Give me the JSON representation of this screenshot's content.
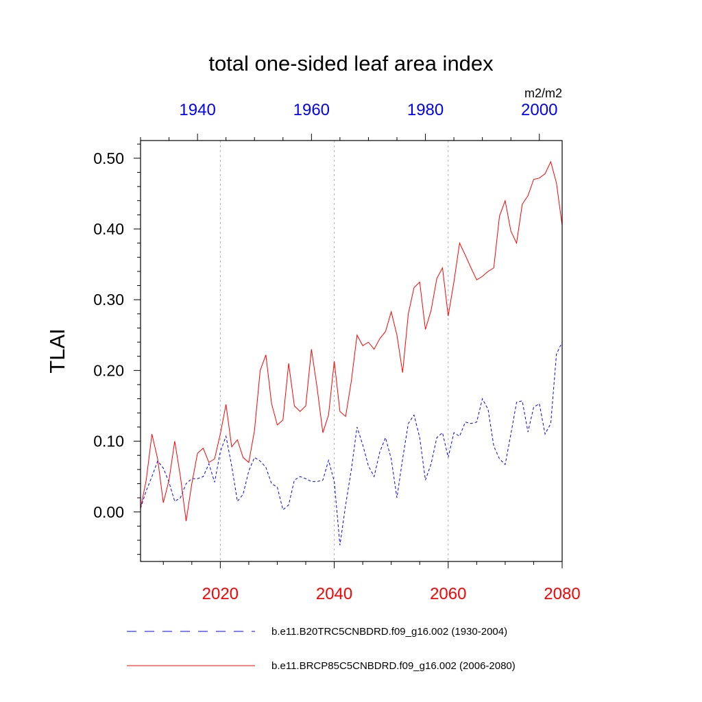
{
  "chart_data": {
    "type": "line",
    "title": "total one-sided leaf area index",
    "units": "m2/m2",
    "ylabel": "TLAI",
    "ylim": [
      -0.07,
      0.525
    ],
    "yticks": [
      "0.00",
      "0.10",
      "0.20",
      "0.30",
      "0.40",
      "0.50"
    ],
    "ytick_values": [
      0.0,
      0.1,
      0.2,
      0.3,
      0.4,
      0.5
    ],
    "grid_vertical_dashed": true,
    "top_axis": {
      "color": "#0000ff",
      "range": [
        1930,
        2004
      ],
      "ticks": [
        "1940",
        "1960",
        "1980",
        "2000"
      ],
      "tick_values": [
        1940,
        1960,
        1980,
        2000
      ]
    },
    "bottom_axis": {
      "color": "#ff0000",
      "range": [
        2006,
        2080
      ],
      "ticks": [
        "2020",
        "2040",
        "2060",
        "2080"
      ],
      "tick_values": [
        2020,
        2040,
        2060,
        2080
      ]
    },
    "series": [
      {
        "name": "b.e11.B20TRC5CNBDRD.f09_g16.002 (1930-2004)",
        "color": "#0000ff",
        "dash": "dashed",
        "axis": "top",
        "x_start": 1930,
        "values": [
          0.005,
          0.03,
          0.05,
          0.072,
          0.062,
          0.042,
          0.015,
          0.02,
          0.04,
          0.047,
          0.047,
          0.05,
          0.068,
          0.042,
          0.085,
          0.107,
          0.065,
          0.015,
          0.025,
          0.058,
          0.077,
          0.072,
          0.063,
          0.04,
          0.035,
          0.003,
          0.01,
          0.045,
          0.05,
          0.047,
          0.043,
          0.043,
          0.045,
          0.073,
          0.043,
          -0.047,
          0.01,
          0.06,
          0.12,
          0.095,
          0.065,
          0.05,
          0.085,
          0.105,
          0.075,
          0.02,
          0.075,
          0.125,
          0.137,
          0.105,
          0.045,
          0.068,
          0.105,
          0.112,
          0.077,
          0.112,
          0.107,
          0.127,
          0.125,
          0.127,
          0.16,
          0.145,
          0.093,
          0.075,
          0.067,
          0.11,
          0.155,
          0.157,
          0.113,
          0.148,
          0.153,
          0.11,
          0.125,
          0.223,
          0.24
        ]
      },
      {
        "name": "b.e11.BRCP85C5CNBDRD.f09_g16.002 (2006-2080)",
        "color": "#ff0000",
        "dash": "solid",
        "axis": "bottom",
        "x_start": 2006,
        "values": [
          0.005,
          0.045,
          0.11,
          0.075,
          0.013,
          0.045,
          0.1,
          0.05,
          -0.013,
          0.04,
          0.083,
          0.09,
          0.07,
          0.075,
          0.11,
          0.152,
          0.092,
          0.102,
          0.077,
          0.07,
          0.115,
          0.2,
          0.222,
          0.153,
          0.123,
          0.13,
          0.21,
          0.15,
          0.142,
          0.15,
          0.23,
          0.175,
          0.112,
          0.137,
          0.213,
          0.142,
          0.135,
          0.185,
          0.25,
          0.235,
          0.24,
          0.23,
          0.245,
          0.255,
          0.283,
          0.25,
          0.197,
          0.28,
          0.317,
          0.325,
          0.258,
          0.285,
          0.33,
          0.345,
          0.277,
          0.325,
          0.38,
          0.363,
          0.345,
          0.328,
          0.333,
          0.34,
          0.345,
          0.418,
          0.44,
          0.397,
          0.38,
          0.435,
          0.447,
          0.47,
          0.472,
          0.478,
          0.495,
          0.465,
          0.405
        ]
      }
    ]
  }
}
